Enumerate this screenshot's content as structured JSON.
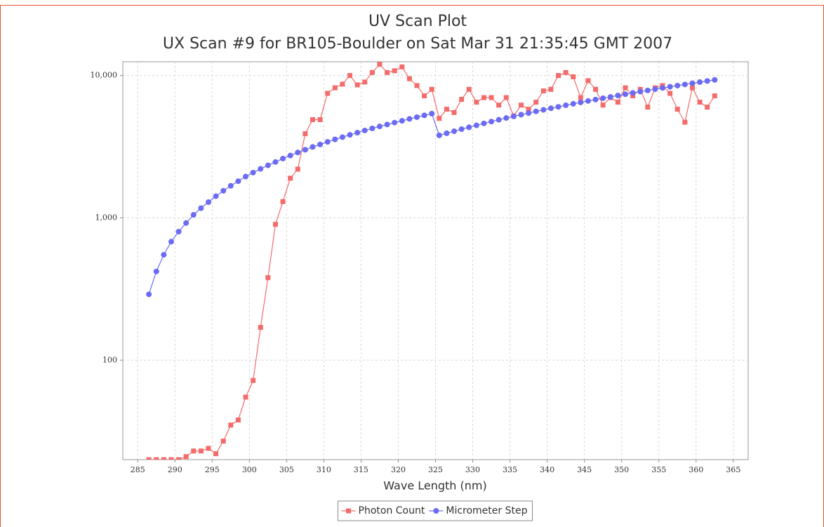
{
  "chart_data": {
    "type": "line",
    "title": "UV Scan Plot",
    "subtitle": "UX Scan #9 for BR105-Boulder on Sat Mar 31 21:35:45 GMT 2007",
    "x_label": "Wave Length (nm)",
    "x": [
      286.5,
      287.5,
      288.5,
      289.5,
      290.5,
      291.5,
      292.5,
      293.5,
      294.5,
      295.5,
      296.5,
      297.5,
      298.5,
      299.5,
      300.5,
      301.5,
      302.5,
      303.5,
      304.5,
      305.5,
      306.5,
      307.5,
      308.5,
      309.5,
      310.5,
      311.5,
      312.5,
      313.5,
      314.5,
      315.5,
      316.5,
      317.5,
      318.5,
      319.5,
      320.5,
      321.5,
      322.5,
      323.5,
      324.5,
      325.5,
      326.5,
      327.5,
      328.5,
      329.5,
      330.5,
      331.5,
      332.5,
      333.5,
      334.5,
      335.5,
      336.5,
      337.5,
      338.5,
      339.5,
      340.5,
      341.5,
      342.5,
      343.5,
      344.5,
      345.5,
      346.5,
      347.5,
      348.5,
      349.5,
      350.5,
      351.5,
      352.5,
      353.5,
      354.5,
      355.5,
      356.5,
      357.5,
      358.5,
      359.5,
      360.5,
      361.5,
      362.5
    ],
    "series": [
      {
        "name": "Photon Count",
        "color": "#f36b6b",
        "marker": "square",
        "values": [
          20,
          20,
          20,
          20,
          20,
          21,
          23,
          23,
          24,
          22,
          27,
          35,
          38,
          55,
          72,
          170,
          380,
          900,
          1300,
          1900,
          2200,
          3900,
          4900,
          4900,
          7500,
          8200,
          8700,
          10000,
          8600,
          9000,
          10500,
          12000,
          10500,
          10800,
          11500,
          9500,
          8500,
          7200,
          8000,
          5000,
          5800,
          5500,
          6800,
          8000,
          6500,
          7000,
          7000,
          6200,
          7000,
          5200,
          6200,
          5800,
          6500,
          7800,
          8000,
          10000,
          10500,
          9800,
          7000,
          9200,
          8000,
          6200,
          7000,
          6500,
          8200,
          7200,
          8000,
          6000,
          8200,
          8500,
          7500,
          5800,
          4700,
          8200,
          6500,
          6000,
          7200
        ]
      },
      {
        "name": "Micrometer Step",
        "color": "#6b6bf3",
        "marker": "circle",
        "values": [
          290,
          420,
          550,
          680,
          800,
          920,
          1050,
          1170,
          1290,
          1420,
          1550,
          1680,
          1810,
          1950,
          2080,
          2210,
          2340,
          2470,
          2610,
          2740,
          2880,
          3010,
          3150,
          3280,
          3420,
          3560,
          3690,
          3830,
          3970,
          4110,
          4250,
          4390,
          4530,
          4670,
          4810,
          4960,
          5100,
          5250,
          5400,
          3800,
          3930,
          4060,
          4200,
          4330,
          4470,
          4610,
          4750,
          4890,
          5030,
          5170,
          5310,
          5450,
          5600,
          5740,
          5890,
          6030,
          6180,
          6330,
          6480,
          6630,
          6780,
          6930,
          7080,
          7240,
          7390,
          7550,
          7710,
          7860,
          8020,
          8180,
          8340,
          8500,
          8660,
          8830,
          8990,
          9160,
          9320
        ]
      }
    ],
    "xlim": [
      283,
      367
    ],
    "xticks": [
      285,
      290,
      295,
      300,
      305,
      310,
      315,
      320,
      325,
      330,
      335,
      340,
      345,
      350,
      355,
      360,
      365
    ],
    "ylim": [
      20,
      12500
    ],
    "yticks": [
      100,
      {
        "value": 1000,
        "label": "1,000"
      },
      {
        "value": 10000,
        "label": "10,000"
      }
    ],
    "log_y": true,
    "grid": true,
    "legend": "bottom"
  }
}
